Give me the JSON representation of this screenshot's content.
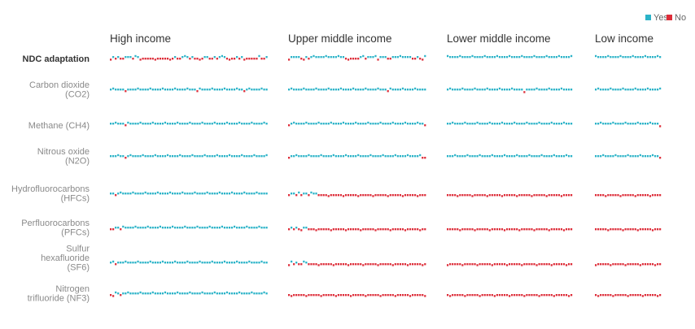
{
  "chart_data": {
    "type": "waffle",
    "title": "",
    "xlabel": "",
    "ylabel": "",
    "legend": {
      "position": "top-right",
      "items": [
        {
          "name": "Yes",
          "color": "#2bb3c8"
        },
        {
          "name": "No",
          "color": "#dd2c38"
        }
      ]
    },
    "groups": [
      {
        "name": "High income",
        "count": 64
      },
      {
        "name": "Upper middle income",
        "count": 56
      },
      {
        "name": "Lower middle income",
        "count": 51
      },
      {
        "name": "Low income",
        "count": 27
      }
    ],
    "rows": [
      {
        "label": "NDC adaptation",
        "emphasis": true,
        "groups": [
          "NYNYNNYYYNYYNNNNNNNNNNNNNNYNNYYYNYNNNNYYNNYNYYYNNNNYNYNNNNNNYNNY",
          "NYYYYNNYNYYYYYYYYYYYYYYNNNNNNYYNYYYYNYYYNNYYYYYYYYNNYNNY",
          "YYYYYYYYYYYYYYYYYYYYYYYYYYYYYYYYYYYYYYYYYYYYYYYYYYY",
          "YYYYYYYYYYYYYYYYYYYYYYYYYYY"
        ]
      },
      {
        "label": "Carbon dioxide (CO2)",
        "emphasis": false,
        "groups": [
          "YYYYYYNYYYYYYYYYYYYYYYYYYYYYYYYYYYYNYYYYYYYYYYYYYYYYYYNYYYYYYYYY",
          "YYYYYYYYYYYYYYYYYYYYYYYYYYYYYYYYYYYYYYYYNYYYYYYYYYYYYYYY",
          "YYYYYYYYYYYYYYYYYYYYYYYYYYYYYYYNYYYYYYYYYYYYYYYYYYY",
          "YYYYYYYYYYYYYYYYYYYYYYYYYYY"
        ]
      },
      {
        "label": "Methane (CH4)",
        "emphasis": false,
        "groups": [
          "YYYYYYNYYYYYYYYYYYYYYYYYYYYYYYYYYYYYYYYYYYYYYYYYYYYYYYYYYYYYYYYY",
          "NYYYYYYYYYYYYYYYYYYYYYYYYYYYYYYYYYYYYYYYYYYYYYYYYYYYYYYN",
          "YYYYYYYYYYYYYYYYYYYYYYYYYYYYYYYYYYYYYYYYYYYYYYYYYYY",
          "YYYYYYYYYYYYYYYYYYYYYYYYYYN"
        ]
      },
      {
        "label": "Nitrous oxide (N2O)",
        "emphasis": false,
        "groups": [
          "YYYYYYNYYYYYYYYYYYYYYYYYYYYYYYYYYYYYYYYYYYYYYYYYYYYYYYYYYYYYYYYY",
          "NYYYYYYYYYYYYYYYYYYYYYYYYYYYYYYYYYYYYYYYYYYYYYYYYYYYYYNN",
          "YYYYYYYYYYYYYYYYYYYYYYYYYYYYYYYYYYYYYYYYYYYYYYYYYYY",
          "YYYYYYYYYYYYYYYYYYYYYYYYYYN"
        ]
      },
      {
        "label": "Hydrofluorocarbons (HFCs)",
        "emphasis": false,
        "groups": [
          "YYNYYYYYYYYYYYYYYYYYYYYYYYYYYYYYYYYYYYYYYYYYYYYYYYYYYYYYYYYYYYYY",
          "NYYNYNYYNYYYNNNNNNNNNNNNNNNNNNNNNNNNNNNNNNNNNNNNNNNNNNNN",
          "NNNNNNNNNNNNNNNNNNNNNNNNNNNNNNNNNNNNNNNNNNNNNNNNNNN",
          "NNNNNNNNNNNNNNNNNNNNNNNNNNN"
        ]
      },
      {
        "label": "Perfluorocarbons (PFCs)",
        "emphasis": false,
        "groups": [
          "NNYYNYYYYYYYYYYYYYYYYYYYYYYYYYYYYYYYYYYYYYYYYYYYYYYYYYYYYYYYYYYY",
          "NYNYNNYYNNNNNNNNNNNNNNNNNNNNNNNNNNNNNNNNNNNNNNNNNNNNNNNN",
          "NNNNNNNNNNNNNNNNNNNNNNNNNNNNNNNNNNNNNNNNNNNNNNNNNNN",
          "NNNNNNNNNNNNNNNNNNNNNNNNNNN"
        ]
      },
      {
        "label": "Sulfur hexafluoride (SF6)",
        "emphasis": false,
        "groups": [
          "YYNYYYYYYYYYYYYYYYYYYYYYYYYYYYYYYYYYYYYYYYYYYYYYYYYYYYYYYYYYYYYY",
          "NYNYNNYYNNNNNNNNNNNNNNNNNNNNNNNNNNNNNNNNNNNNNNNNNNNNNNNN",
          "NNNNNNNNNNNNNNNNNNNNNNNNNNNNNNNNNNNNNNNNNNNNNNNNNNN",
          "NNNNNNNNNNNNNNNNNNNNNNNNNNN"
        ]
      },
      {
        "label": "Nitrogen trifluoride (NF3)",
        "emphasis": false,
        "groups": [
          "NNYYNYYYYYYYYYYYYYYYYYYYYYYYYYYYYYYYYYYYYYYYYYYYYYYYYYYYYYYYYYYY",
          "NNNNNNNNNNNNNNNNNNNNNNNNNNNNNNNNNNNNNNNNNNNNNNNNNNNNNNNN",
          "NNNNNNNNNNNNNNNNNNNNNNNNNNNNNNNNNNNNNNNNNNNNNNNNNNN",
          "NNNNNNNNNNNNNNNNNNNNNNNNNNN"
        ]
      }
    ]
  }
}
